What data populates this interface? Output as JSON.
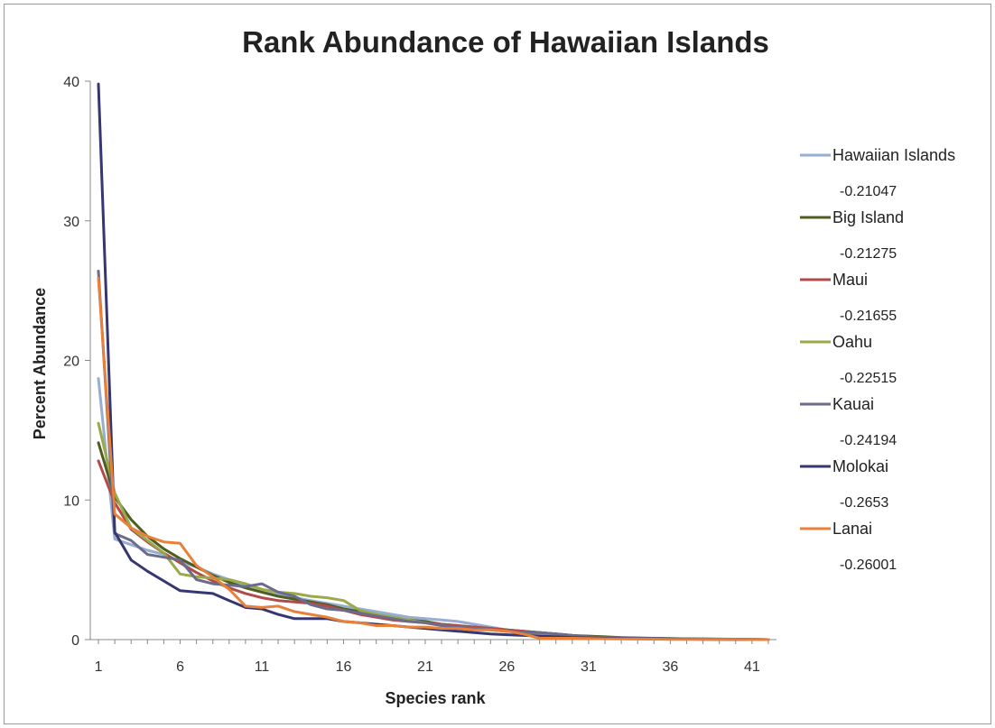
{
  "chart_data": {
    "type": "line",
    "title": "Rank Abundance of Hawaiian Islands",
    "xlabel": "Species rank",
    "ylabel": "Percent Abundance",
    "xlim": [
      1,
      42
    ],
    "ylim": [
      0,
      40
    ],
    "x_ticks": [
      1,
      6,
      11,
      16,
      21,
      26,
      31,
      36,
      41
    ],
    "y_ticks": [
      0,
      10,
      20,
      30,
      40
    ],
    "grid": false,
    "legend_position": "right",
    "series": [
      {
        "name": "Hawaiian Islands",
        "legend_value": "-0.21047",
        "color": "#95aed2",
        "values": [
          18.7,
          7.2,
          6.8,
          6.4,
          6.1,
          5.6,
          5.2,
          4.7,
          4.3,
          3.8,
          3.4,
          3.2,
          3.0,
          2.8,
          2.6,
          2.4,
          2.2,
          2.0,
          1.8,
          1.6,
          1.5,
          1.4,
          1.3,
          1.1,
          0.9,
          0.7,
          0.6,
          0.5,
          0.4,
          0.3,
          0.2,
          0.15,
          0.12,
          0.1,
          0.08,
          0.06,
          0.05,
          0.04,
          0.03,
          0.02,
          0.01,
          0.0
        ]
      },
      {
        "name": "Big Island",
        "legend_value": "-0.21275",
        "color": "#4e5e1e",
        "values": [
          14.1,
          10.2,
          8.6,
          7.4,
          6.5,
          5.8,
          5.2,
          4.6,
          4.1,
          3.7,
          3.4,
          3.1,
          2.9,
          2.7,
          2.5,
          2.2,
          2.0,
          1.8,
          1.6,
          1.4,
          1.3,
          1.1,
          1.0,
          0.9,
          0.8,
          0.7,
          0.6,
          0.5,
          0.4,
          0.3,
          0.25,
          0.2,
          0.15,
          0.12,
          0.1,
          0.08,
          0.06,
          0.05,
          0.04,
          0.03,
          0.02,
          0.0
        ]
      },
      {
        "name": "Maui",
        "legend_value": "-0.21655",
        "color": "#b14a4a",
        "values": [
          12.8,
          9.8,
          7.9,
          7.0,
          6.2,
          5.5,
          4.8,
          4.2,
          3.7,
          3.3,
          3.0,
          2.8,
          2.7,
          2.6,
          2.4,
          2.1,
          1.8,
          1.6,
          1.4,
          1.3,
          1.2,
          1.1,
          1.0,
          0.9,
          0.8,
          0.7,
          0.6,
          0.5,
          0.4,
          0.3,
          0.2,
          0.15,
          0.12,
          0.1,
          0.08,
          0.06,
          0.05,
          0.04,
          0.03,
          0.02,
          0.01,
          0.0
        ]
      },
      {
        "name": "Oahu",
        "legend_value": "-0.22515",
        "color": "#9aaa4a",
        "values": [
          15.5,
          10.5,
          8.0,
          7.1,
          6.2,
          4.7,
          4.5,
          4.4,
          4.3,
          4.0,
          3.6,
          3.4,
          3.3,
          3.1,
          3.0,
          2.8,
          2.1,
          1.8,
          1.6,
          1.4,
          1.2,
          1.0,
          0.9,
          0.8,
          0.7,
          0.6,
          0.5,
          0.4,
          0.3,
          0.2,
          0.15,
          0.12,
          0.1,
          0.08,
          0.06,
          0.05,
          0.04,
          0.03,
          0.02,
          0.01,
          0.01,
          0.0
        ]
      },
      {
        "name": "Kauai",
        "legend_value": "-0.24194",
        "color": "#6b6b8c",
        "values": [
          26.4,
          7.6,
          7.1,
          6.1,
          5.9,
          5.7,
          4.3,
          4.0,
          3.9,
          3.8,
          4.0,
          3.4,
          3.1,
          2.5,
          2.2,
          2.1,
          1.9,
          1.7,
          1.5,
          1.3,
          1.2,
          1.0,
          0.9,
          0.8,
          0.7,
          0.6,
          0.5,
          0.5,
          0.4,
          0.3,
          0.2,
          0.15,
          0.12,
          0.1,
          0.08,
          0.06,
          0.05,
          0.04,
          0.03,
          0.02,
          0.01,
          0.0
        ]
      },
      {
        "name": "Molokai",
        "legend_value": "-0.2653",
        "color": "#363670",
        "values": [
          39.8,
          7.7,
          5.7,
          4.9,
          4.2,
          3.5,
          3.4,
          3.3,
          2.8,
          2.3,
          2.2,
          1.8,
          1.5,
          1.5,
          1.5,
          1.3,
          1.2,
          1.1,
          1.0,
          0.9,
          0.8,
          0.7,
          0.6,
          0.5,
          0.4,
          0.35,
          0.3,
          0.25,
          0.2,
          0.15,
          0.12,
          0.1,
          0.08,
          0.06,
          0.05,
          0.04,
          0.03,
          0.02,
          0.01,
          0.01,
          0.0,
          0.0
        ]
      },
      {
        "name": "Lanai",
        "legend_value": "-0.26001",
        "color": "#e8803a",
        "values": [
          25.9,
          9.0,
          8.0,
          7.4,
          7.0,
          6.9,
          5.3,
          4.5,
          3.6,
          2.4,
          2.3,
          2.4,
          2.0,
          1.8,
          1.6,
          1.3,
          1.2,
          1.0,
          1.0,
          0.9,
          0.9,
          0.8,
          0.8,
          0.7,
          0.7,
          0.6,
          0.4,
          0.1,
          0.1,
          0.1,
          0.08,
          0.06,
          0.05,
          0.04,
          0.03,
          0.02,
          0.02,
          0.01,
          0.01,
          0.01,
          0.0,
          0.0
        ]
      }
    ]
  }
}
